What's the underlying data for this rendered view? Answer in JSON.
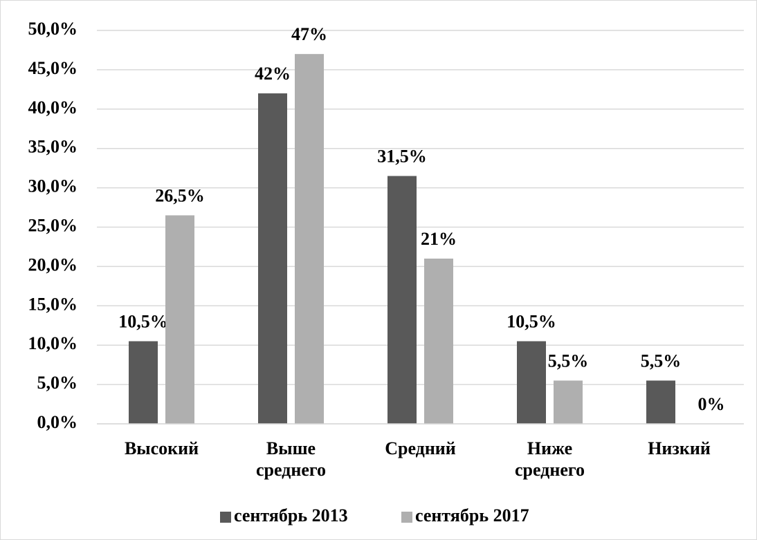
{
  "chart_data": {
    "type": "bar",
    "categories": [
      "Высокий",
      "Выше среднего",
      "Средний",
      "Ниже среднего",
      "Низкий"
    ],
    "series": [
      {
        "name": "сентябрь 2013",
        "color": "#595959",
        "values": [
          10.5,
          42,
          31.5,
          10.5,
          5.5
        ],
        "value_labels": [
          "10,5%",
          "42%",
          "31,5%",
          "10,5%",
          "5,5%"
        ]
      },
      {
        "name": "сентябрь 2017",
        "color": "#afafaf",
        "values": [
          26.5,
          47,
          21,
          5.5,
          0
        ],
        "value_labels": [
          "26,5%",
          "47%",
          "21%",
          "5,5%",
          "0%"
        ]
      }
    ],
    "ylim": [
      0,
      50
    ],
    "yticks": [
      {
        "value": 0,
        "label": "0,0%"
      },
      {
        "value": 5,
        "label": "5,0%"
      },
      {
        "value": 10,
        "label": "10,0%"
      },
      {
        "value": 15,
        "label": "15,0%"
      },
      {
        "value": 20,
        "label": "20,0%"
      },
      {
        "value": 25,
        "label": "25,0%"
      },
      {
        "value": 30,
        "label": "30,0%"
      },
      {
        "value": 35,
        "label": "35,0%"
      },
      {
        "value": 40,
        "label": "40,0%"
      },
      {
        "value": 45,
        "label": "45,0%"
      },
      {
        "value": 50,
        "label": "50,0%"
      }
    ],
    "grid": true,
    "legend": "bottom"
  }
}
